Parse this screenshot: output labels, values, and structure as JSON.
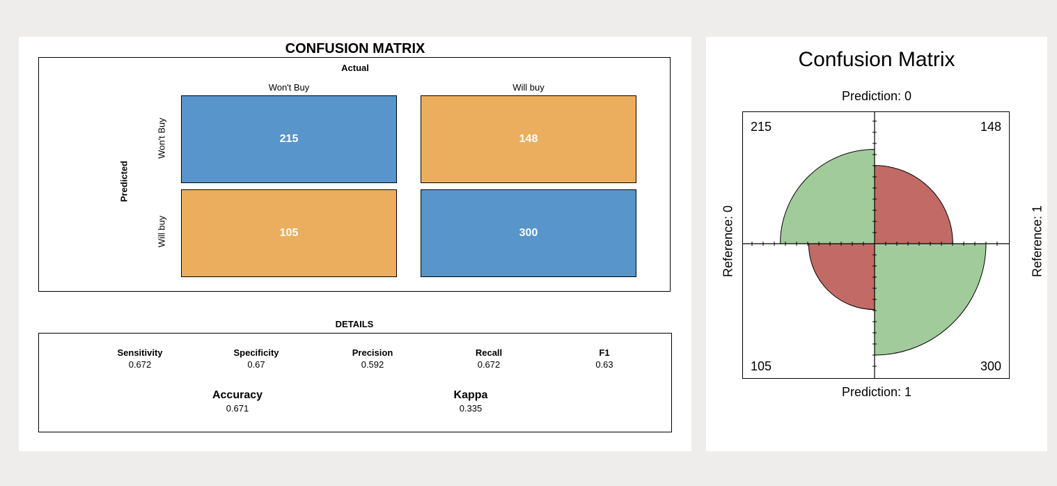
{
  "chart_data": [
    {
      "type": "heatmap",
      "title": "CONFUSION MATRIX",
      "column_axis_label": "Actual",
      "row_axis_label": "Predicted",
      "columns": [
        "Won't Buy",
        "Will buy"
      ],
      "rows": [
        "Won't Buy",
        "Will buy"
      ],
      "values": [
        [
          215,
          148
        ],
        [
          105,
          300
        ]
      ],
      "colors": {
        "correct": "#5895ca",
        "incorrect": "#ebae5f"
      },
      "details": {
        "title": "DETAILS",
        "metrics": [
          {
            "name": "Sensitivity",
            "value": "0.672"
          },
          {
            "name": "Specificity",
            "value": "0.67"
          },
          {
            "name": "Precision",
            "value": "0.592"
          },
          {
            "name": "Recall",
            "value": "0.672"
          },
          {
            "name": "F1",
            "value": "0.63"
          }
        ],
        "summary": [
          {
            "name": "Accuracy",
            "value": "0.671"
          },
          {
            "name": "Kappa",
            "value": "0.335"
          }
        ]
      }
    },
    {
      "type": "fourfold",
      "title": "Confusion Matrix",
      "top_label": "Prediction: 0",
      "bottom_label": "Prediction: 1",
      "left_label": "Reference: 0",
      "right_label": "Reference: 1",
      "cells": [
        {
          "position": "top-left",
          "value": 215,
          "color": "#a2cb9b"
        },
        {
          "position": "top-right",
          "value": 148,
          "color": "#c26a65"
        },
        {
          "position": "bottom-left",
          "value": 105,
          "color": "#c26a65"
        },
        {
          "position": "bottom-right",
          "value": 300,
          "color": "#a2cb9b"
        }
      ]
    }
  ]
}
